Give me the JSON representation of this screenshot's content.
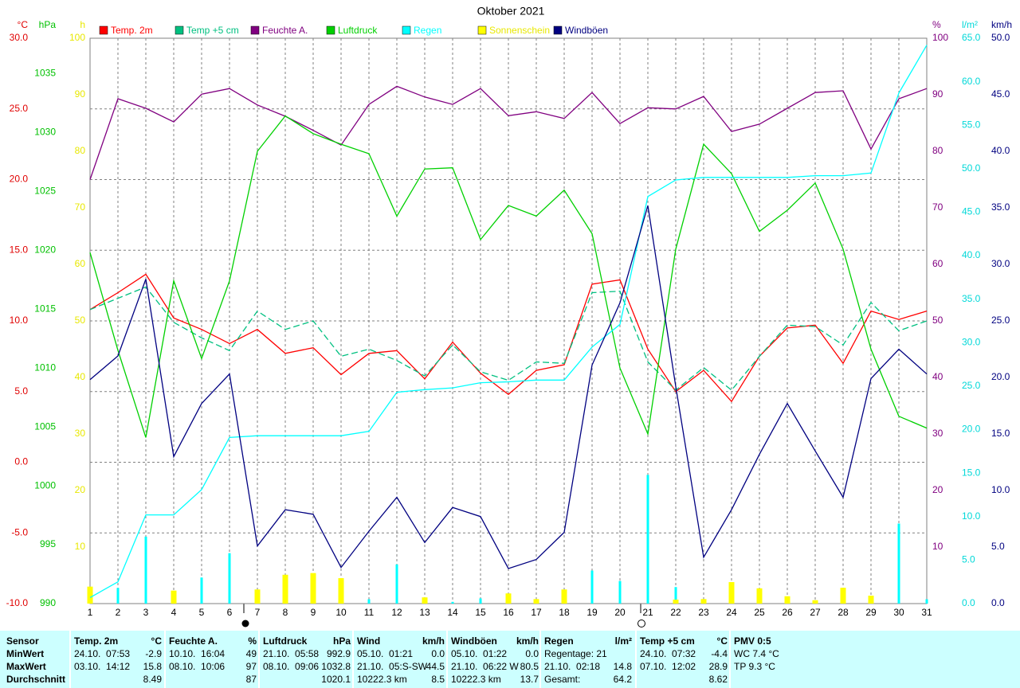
{
  "chart_data": {
    "type": "line",
    "title": "Oktober 2021",
    "x": [
      1,
      2,
      3,
      4,
      5,
      6,
      7,
      8,
      9,
      10,
      11,
      12,
      13,
      14,
      15,
      16,
      17,
      18,
      19,
      20,
      21,
      22,
      23,
      24,
      25,
      26,
      27,
      28,
      29,
      30,
      31
    ],
    "xlim": [
      1,
      31
    ],
    "xticks": [
      1,
      2,
      3,
      4,
      5,
      6,
      7,
      8,
      9,
      10,
      11,
      12,
      13,
      14,
      15,
      16,
      17,
      18,
      19,
      20,
      21,
      22,
      23,
      24,
      25,
      26,
      27,
      28,
      29,
      30,
      31
    ],
    "axes": [
      {
        "unit": "°C",
        "side": "left",
        "color": "#e00000",
        "grid": true,
        "lim": [
          -10,
          30
        ],
        "ticks": [
          {
            "value": -10,
            "label": "-10.0"
          },
          {
            "value": -5,
            "label": "-5.0"
          },
          {
            "value": 0,
            "label": "0.0"
          },
          {
            "value": 5,
            "label": "5.0"
          },
          {
            "value": 10,
            "label": "10.0"
          },
          {
            "value": 15,
            "label": "15.0"
          },
          {
            "value": 20,
            "label": "20.0"
          },
          {
            "value": 25,
            "label": "25.0"
          },
          {
            "value": 30,
            "label": "30.0"
          }
        ]
      },
      {
        "unit": "hPa",
        "side": "left",
        "color": "#00c000",
        "lim": [
          990,
          1038
        ],
        "ticks": [
          990,
          995,
          1000,
          1005,
          1010,
          1015,
          1020,
          1025,
          1030,
          1035
        ]
      },
      {
        "unit": "h",
        "side": "left",
        "color": "#e8e800",
        "lim": [
          0,
          100
        ],
        "ticks": [
          10,
          20,
          30,
          40,
          50,
          60,
          70,
          80,
          90,
          100
        ]
      },
      {
        "unit": "%",
        "side": "right",
        "color": "#800080",
        "lim": [
          0,
          100
        ],
        "ticks": [
          10,
          20,
          30,
          40,
          50,
          60,
          70,
          80,
          90,
          100
        ]
      },
      {
        "unit": "l/m²",
        "side": "right",
        "color": "#00d8d8",
        "lim": [
          0,
          65
        ],
        "ticks": [
          {
            "value": 0,
            "label": "0.0"
          },
          {
            "value": 5,
            "label": "5.0"
          },
          {
            "value": 10,
            "label": "10.0"
          },
          {
            "value": 15,
            "label": "15.0"
          },
          {
            "value": 20,
            "label": "20.0"
          },
          {
            "value": 25,
            "label": "25.0"
          },
          {
            "value": 30,
            "label": "30.0"
          },
          {
            "value": 35,
            "label": "35.0"
          },
          {
            "value": 40,
            "label": "40.0"
          },
          {
            "value": 45,
            "label": "45.0"
          },
          {
            "value": 50,
            "label": "50.0"
          },
          {
            "value": 55,
            "label": "55.0"
          },
          {
            "value": 60,
            "label": "60.0"
          },
          {
            "value": 65,
            "label": "65.0"
          }
        ]
      },
      {
        "unit": "km/h",
        "side": "right",
        "color": "#000080",
        "lim": [
          0,
          50
        ],
        "ticks": [
          {
            "value": 0,
            "label": "0.0"
          },
          {
            "value": 5,
            "label": "5.0"
          },
          {
            "value": 10,
            "label": "10.0"
          },
          {
            "value": 15,
            "label": "15.0"
          },
          {
            "value": 20,
            "label": "20.0"
          },
          {
            "value": 25,
            "label": "25.0"
          },
          {
            "value": 30,
            "label": "30.0"
          },
          {
            "value": 35,
            "label": "35.0"
          },
          {
            "value": 40,
            "label": "40.0"
          },
          {
            "value": 45,
            "label": "45.0"
          },
          {
            "value": 50,
            "label": "50.0"
          }
        ]
      }
    ],
    "series": [
      {
        "name": "Temp. 2m",
        "color": "#ff0000",
        "kind": "line",
        "axis": 0,
        "values": [
          10.8,
          12.0,
          13.3,
          10.2,
          9.4,
          8.4,
          9.4,
          7.7,
          8.1,
          6.2,
          7.7,
          7.9,
          5.9,
          8.5,
          6.3,
          4.8,
          6.5,
          6.9,
          12.6,
          12.9,
          8.0,
          5.0,
          6.5,
          4.3,
          7.5,
          9.5,
          9.7,
          7.0,
          10.7,
          10.1,
          10.7
        ]
      },
      {
        "name": "Temp +5 cm",
        "color": "#00c080",
        "kind": "line",
        "dashed": true,
        "axis": 0,
        "values": [
          10.8,
          11.6,
          12.4,
          9.9,
          8.8,
          7.9,
          10.7,
          9.4,
          10.0,
          7.5,
          8.0,
          7.2,
          6.1,
          8.3,
          6.4,
          5.8,
          7.1,
          7.0,
          12.0,
          12.1,
          7.1,
          5.1,
          6.7,
          5.1,
          7.5,
          9.7,
          9.6,
          8.3,
          11.3,
          9.3,
          10.0
        ]
      },
      {
        "name": "Feuchte A.",
        "color": "#800080",
        "kind": "line",
        "axis": 3,
        "values": [
          75,
          89.3,
          87.6,
          85.2,
          90.1,
          91.1,
          88.2,
          86.2,
          83.7,
          81.1,
          88.3,
          91.5,
          89.6,
          88.3,
          91.1,
          86.3,
          87.0,
          85.8,
          90.4,
          84.9,
          87.7,
          87.5,
          89.7,
          83.5,
          84.8,
          87.6,
          90.4,
          90.7,
          80.4,
          89.3,
          91.1
        ]
      },
      {
        "name": "Luftdruck",
        "color": "#00d000",
        "kind": "line",
        "axis": 1,
        "values": [
          1019.8,
          1011.5,
          1004.1,
          1017.4,
          1010.8,
          1017.4,
          1028.4,
          1031.4,
          1029.9,
          1029.0,
          1028.2,
          1022.9,
          1026.9,
          1027.0,
          1020.9,
          1023.8,
          1022.9,
          1025.1,
          1021.4,
          1010.0,
          1004.4,
          1020.1,
          1029.0,
          1026.5,
          1021.6,
          1023.4,
          1025.7,
          1020.1,
          1011.6,
          1005.9,
          1004.9
        ]
      },
      {
        "name": "Regen",
        "color": "#00ffff",
        "kind": "line",
        "axis": 4,
        "values": [
          0.7,
          2.5,
          10.2,
          10.2,
          13.1,
          19.1,
          19.3,
          19.3,
          19.3,
          19.3,
          19.8,
          24.3,
          24.6,
          24.8,
          25.4,
          25.5,
          25.7,
          25.7,
          29.5,
          32.1,
          46.8,
          48.7,
          49.0,
          49.0,
          49.0,
          49.0,
          49.2,
          49.2,
          49.5,
          58.7,
          64.2
        ]
      },
      {
        "color": "#00ffff",
        "kind": "bar",
        "axis": 4,
        "values": [
          1.2,
          1.8,
          7.7,
          0,
          3.0,
          5.8,
          0.2,
          0,
          0,
          0,
          0.5,
          4.5,
          0.3,
          0.2,
          0.6,
          0.1,
          0.2,
          0,
          3.8,
          2.6,
          14.8,
          1.9,
          0.3,
          0,
          0,
          0.2,
          0,
          0.3,
          0,
          9.2,
          0.5
        ]
      },
      {
        "name": "Sonnenschein",
        "color": "#ffff00",
        "kind": "bar",
        "axis": 2,
        "values": [
          3.0,
          0,
          0,
          2.3,
          0,
          0,
          2.5,
          5.1,
          5.4,
          4.5,
          0,
          0,
          1.1,
          0,
          0,
          1.8,
          0.8,
          2.5,
          0,
          0,
          0,
          0.7,
          0.8,
          3.8,
          2.7,
          1.3,
          0.6,
          2.8,
          1.4,
          0,
          0
        ]
      },
      {
        "name": "Windböen",
        "color": "#000080",
        "kind": "line",
        "axis": 5,
        "values": [
          19.8,
          21.9,
          28.7,
          13.0,
          17.7,
          20.3,
          5.1,
          8.3,
          7.9,
          3.2,
          6.4,
          9.4,
          5.4,
          8.5,
          7.7,
          3.1,
          3.9,
          6.3,
          21.1,
          26.6,
          35.2,
          19.2,
          4.1,
          8.3,
          13.2,
          17.7,
          13.5,
          9.4,
          19.9,
          22.5,
          20.3
        ]
      }
    ]
  },
  "stats": {
    "row_labels": [
      "Sensor",
      "MinWert",
      "MaxWert",
      "Durchschnitt"
    ],
    "blocks": [
      {
        "name": "Temp. 2m",
        "unit": "°C",
        "min": {
          "label": "24.10.  07:53",
          "value": "-2.9"
        },
        "max": {
          "label": "03.10.  14:12",
          "value": "15.8"
        },
        "avg": {
          "value": "8.49"
        }
      },
      {
        "name": "Feuchte A.",
        "unit": "%",
        "min": {
          "label": "10.10.  16:04",
          "value": "49"
        },
        "max": {
          "label": "08.10.  10:06",
          "value": "97"
        },
        "avg": {
          "value": "87"
        }
      },
      {
        "name": "Luftdruck",
        "unit": "hPa",
        "min": {
          "label": "21.10.  05:58",
          "value": "992.9"
        },
        "max": {
          "label": "08.10.  09:06",
          "value": "1032.8"
        },
        "avg": {
          "value": "1020.1"
        }
      },
      {
        "name": "Wind",
        "unit": "km/h",
        "min": {
          "label": "05.10.  01:21",
          "value": "0.0"
        },
        "max": {
          "label": "21.10.  05:S-SW",
          "value": "44.5"
        },
        "avg": {
          "label": "10222.3 km",
          "value": "8.5"
        }
      },
      {
        "name": "Windböen",
        "unit": "km/h",
        "min": {
          "label": "05.10.  01:22",
          "value": "0.0"
        },
        "max": {
          "label": "21.10.  06:22 W",
          "value": "80.5"
        },
        "avg": {
          "label": "10222.3 km",
          "value": "13.7"
        }
      },
      {
        "name": "Regen",
        "unit": "l/m²",
        "min": {
          "label": "Regentage: 21"
        },
        "max": {
          "label": "21.10.  02:18",
          "value": "14.8"
        },
        "avg": {
          "label": "Gesamt:",
          "value": "64.2"
        }
      },
      {
        "name": "Temp +5 cm",
        "unit": "°C",
        "min": {
          "label": "24.10.  07:32",
          "value": "-4.4"
        },
        "max": {
          "label": "07.10.  12:02",
          "value": "28.9"
        },
        "avg": {
          "value": "8.62"
        }
      },
      {
        "name": "PMV 0:5",
        "min": {
          "label": "WC 7.4 °C"
        },
        "max": {
          "label": "TP 9.3 °C"
        }
      }
    ]
  }
}
